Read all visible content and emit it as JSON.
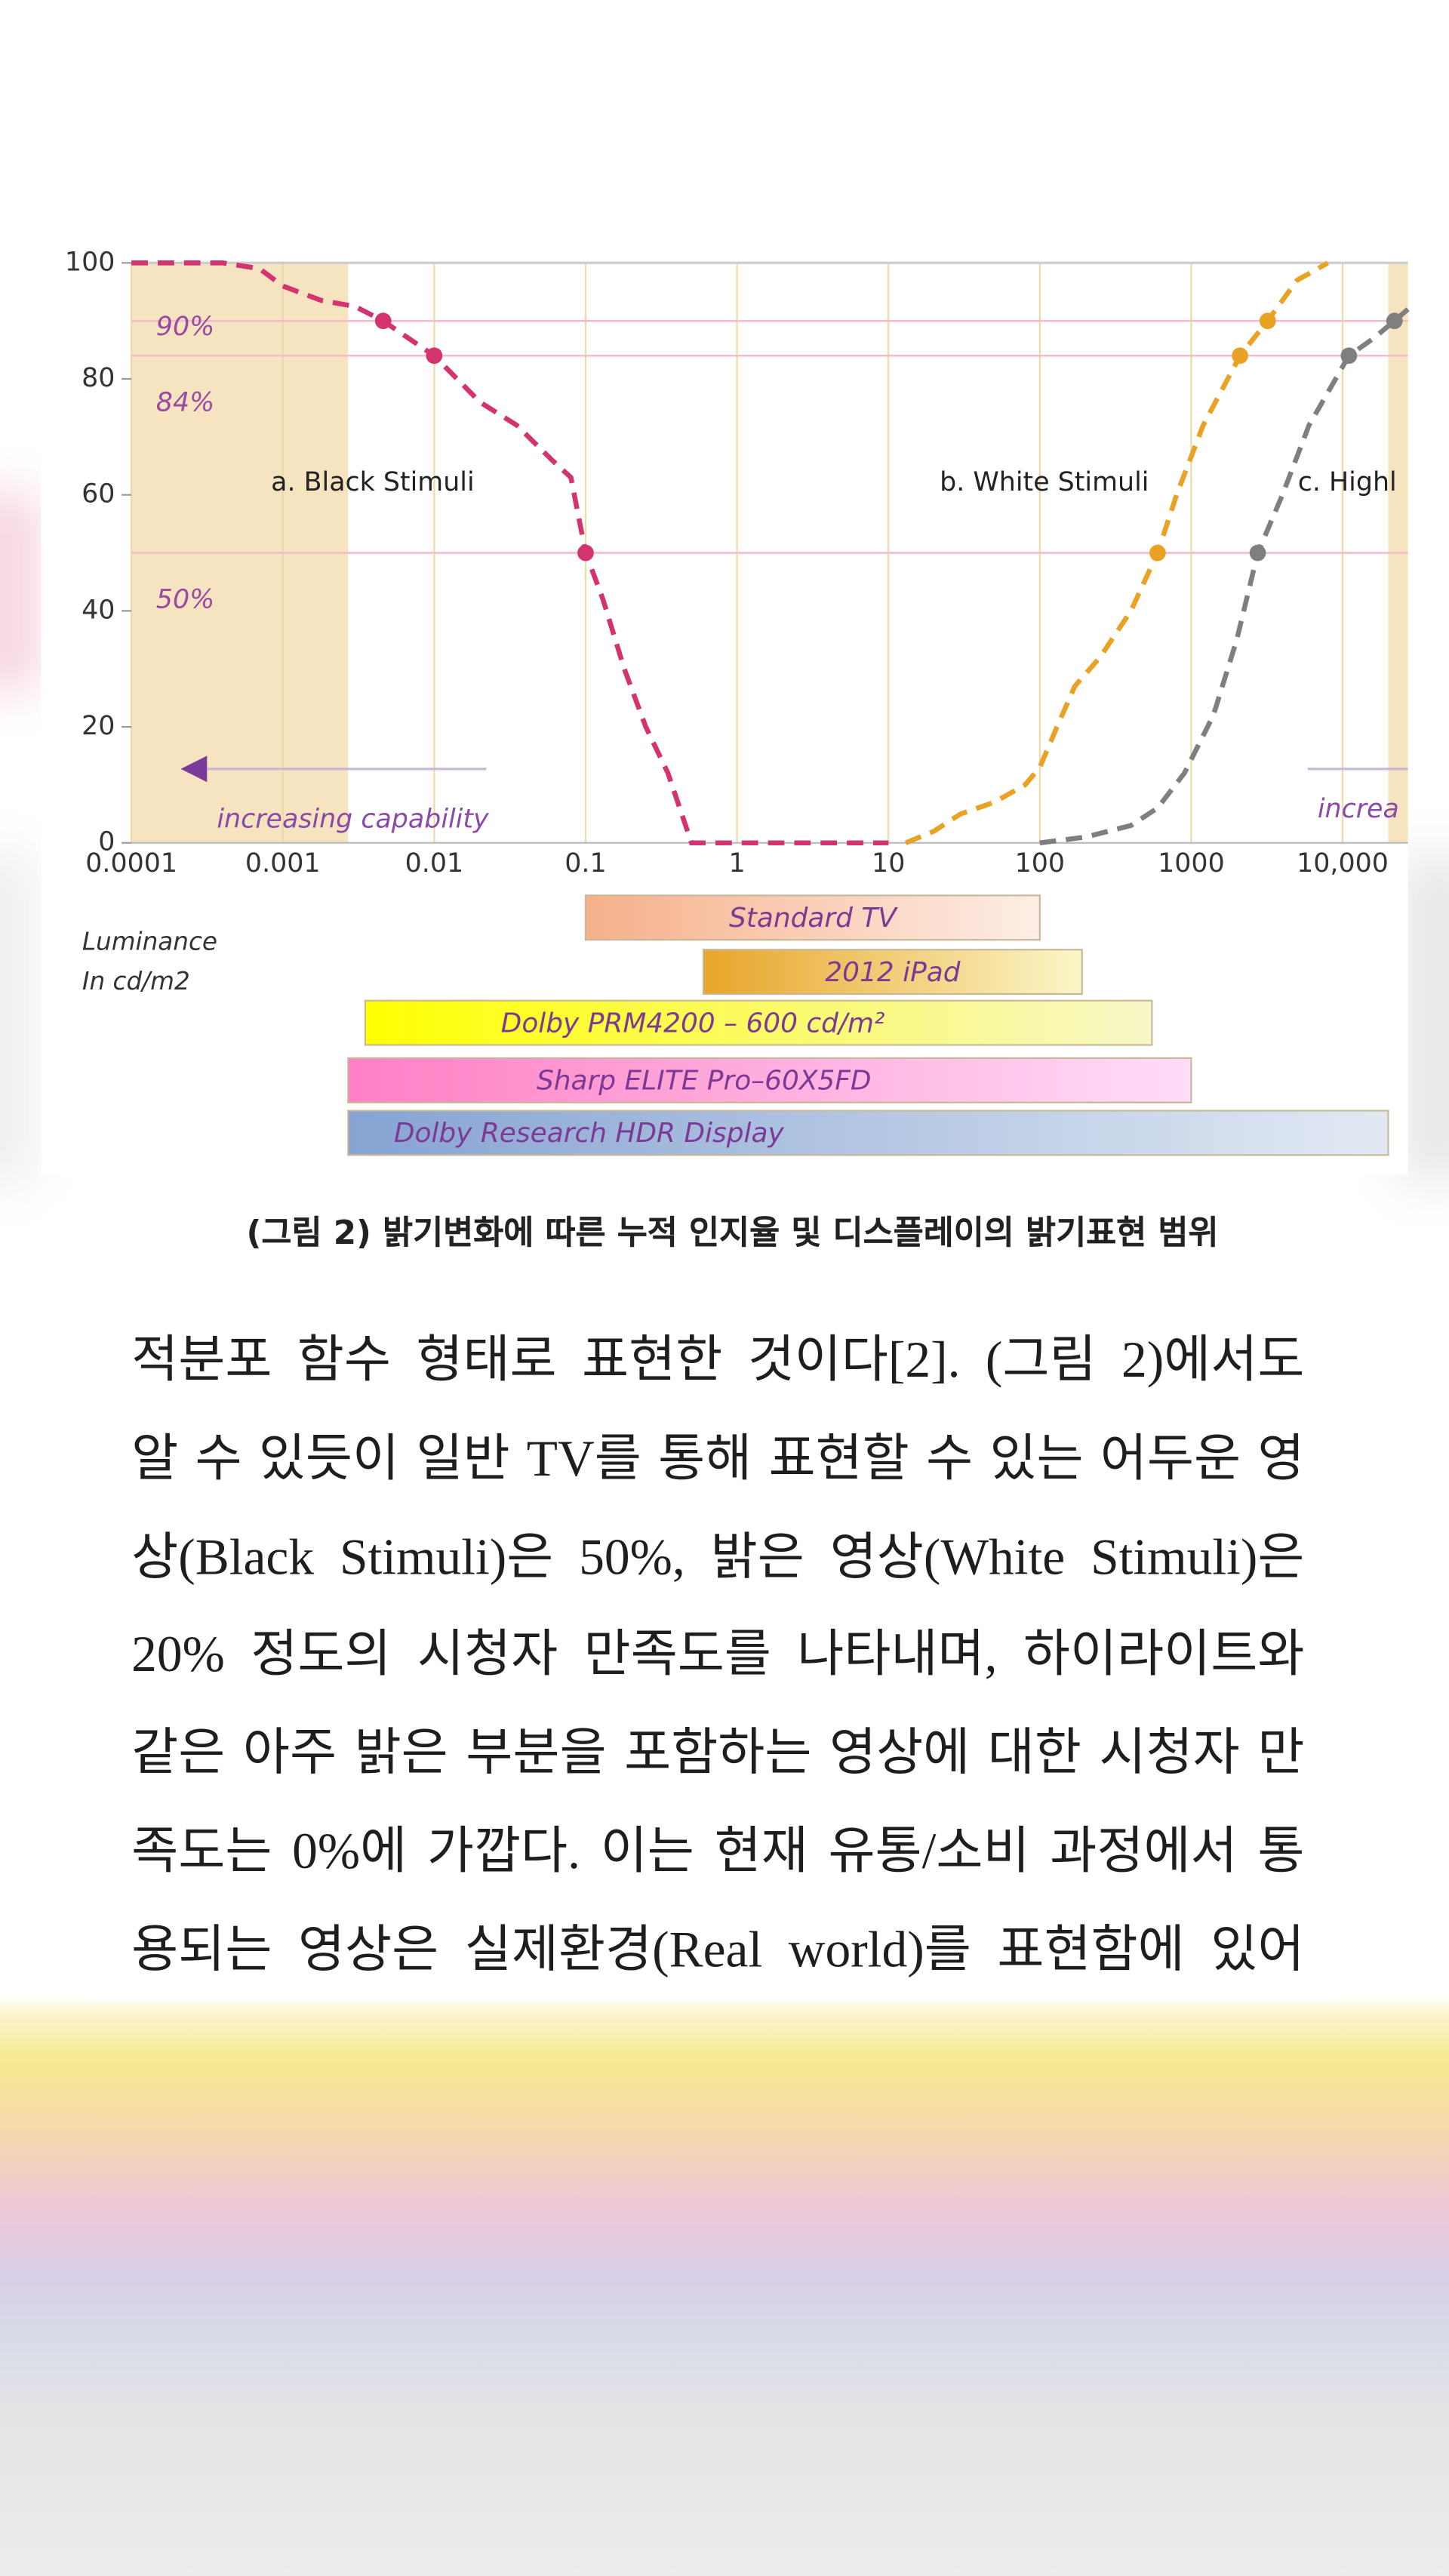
{
  "chart_data": {
    "type": "line",
    "xscale": "log",
    "xlim": [
      0.0001,
      27000
    ],
    "ylim": [
      0,
      100
    ],
    "xticks": [
      0.0001,
      0.001,
      0.01,
      0.1,
      1,
      10,
      100,
      1000,
      {
        "value": 10000,
        "label": "10,000"
      }
    ],
    "yticks": [
      0,
      20,
      40,
      60,
      80,
      100
    ],
    "xlabel": [
      "Luminance",
      "In cd/m2"
    ],
    "shaded_ranges": [
      [
        0.0001,
        0.0027
      ],
      [
        20000,
        27000
      ]
    ],
    "reference_lines": [
      {
        "value": 90,
        "label": "90%"
      },
      {
        "value": 84,
        "label": "84%"
      },
      {
        "value": 50,
        "label": "50%"
      }
    ],
    "series": [
      {
        "name": "a. Black Stimuli",
        "color": "#d3336f",
        "x": [
          0.0001,
          0.0004,
          0.0007,
          0.001,
          0.0018,
          0.003,
          0.0046,
          0.01,
          0.02,
          0.035,
          0.06,
          0.08,
          0.1,
          0.13,
          0.18,
          0.25,
          0.35,
          0.5,
          1,
          3,
          10
        ],
        "values": [
          100,
          100,
          99,
          96,
          93.5,
          92.5,
          90,
          84,
          76,
          72,
          66,
          63,
          50,
          42,
          30,
          20,
          12,
          0,
          0,
          0,
          0
        ]
      },
      {
        "name": "b. White Stimuli",
        "color": "#e9a224",
        "x": [
          13,
          20,
          30,
          50,
          80,
          100,
          130,
          170,
          250,
          400,
          600,
          800,
          1200,
          2100,
          3200,
          5000,
          8000
        ],
        "values": [
          0,
          2,
          5,
          7,
          10,
          13,
          20,
          27,
          32,
          40,
          50,
          60,
          72,
          84,
          90,
          97,
          100
        ]
      },
      {
        "name": "c. Highl",
        "color": "#7f7f7f",
        "x": [
          100,
          200,
          400,
          600,
          900,
          1400,
          2000,
          2750,
          4000,
          6000,
          11000,
          16000,
          22000,
          27000
        ],
        "values": [
          0,
          1,
          3,
          6,
          12,
          22,
          35,
          50,
          60,
          72,
          84,
          87,
          90,
          92
        ]
      }
    ],
    "annotations": [
      "increasing capability",
      "increa"
    ],
    "ranges": [
      {
        "name": "Standard TV",
        "lo": 0.1,
        "hi": 100,
        "colors": [
          "#f6b08a",
          "#fdeee6"
        ]
      },
      {
        "name": "2012 iPad",
        "lo": 0.6,
        "hi": 190,
        "colors": [
          "#e8a52a",
          "#fbf6c8"
        ]
      },
      {
        "name": "Dolby PRM4200 – 600 cd/m²",
        "lo": 0.0035,
        "hi": 550,
        "colors": [
          "#ffff00",
          "#f7f7c8"
        ]
      },
      {
        "name": "Sharp ELITE Pro–60X5FD",
        "lo": 0.0027,
        "hi": 1000,
        "colors": [
          "#ff7fc4",
          "#ffdcfa"
        ]
      },
      {
        "name": "Dolby Research HDR Display",
        "lo": 0.0027,
        "hi": 20000,
        "colors": [
          "#86a3d2",
          "#e2e9f3"
        ]
      }
    ]
  },
  "caption": "(그림 2) 밝기변화에 따른 누적 인지율 및 디스플레이의 밝기표현 범위",
  "body": {
    "lines": [
      "적분포 함수 형태로 표현한 것이다[2]. (그림 2)에서도",
      "알 수 있듯이 일반 TV를 통해 표현할 수 있는 어두운 영",
      "상(Black Stimuli)은 50%, 밝은 영상(White Stimuli)은",
      "20% 정도의 시청자 만족도를 나타내며, 하이라이트와",
      "같은 아주 밝은 부분을 포함하는 영상에 대한 시청자 만",
      "족도는 0%에 가깝다. 이는 현재 유통/소비 과정에서 통",
      "용되는 영상은 실제환경(Real world)를 표현함에 있어"
    ]
  }
}
